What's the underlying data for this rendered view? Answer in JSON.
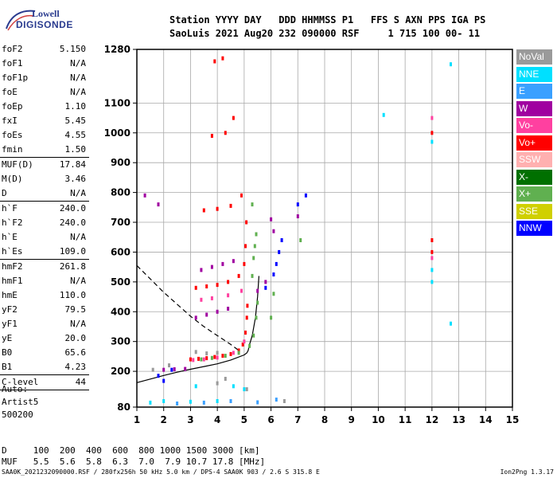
{
  "logo": {
    "line1": "Lowell",
    "line2": "DIGISONDE"
  },
  "header": {
    "line1": "Station YYYY DAY   DDD HHMMSS P1   FFS S AXN PPS IGA PS",
    "line2": "SaoLuis 2021 Aug20 232 090000 RSF     1 715 100 00- 11"
  },
  "params": {
    "group1": [
      {
        "k": "foF2",
        "v": "5.150"
      },
      {
        "k": "foF1",
        "v": "N/A"
      },
      {
        "k": "foF1p",
        "v": "N/A"
      },
      {
        "k": "foE",
        "v": "N/A"
      },
      {
        "k": "foEp",
        "v": "1.10"
      },
      {
        "k": "fxI",
        "v": "5.45"
      },
      {
        "k": "foEs",
        "v": "4.55"
      },
      {
        "k": "fmin",
        "v": "1.50"
      }
    ],
    "group2": [
      {
        "k": "MUF(D)",
        "v": "17.84"
      },
      {
        "k": "M(D)",
        "v": "3.46"
      },
      {
        "k": "D",
        "v": "N/A"
      }
    ],
    "group3": [
      {
        "k": "h`F",
        "v": "240.0"
      },
      {
        "k": "h`F2",
        "v": "240.0"
      },
      {
        "k": "h`E",
        "v": "N/A"
      },
      {
        "k": "h`Es",
        "v": "109.0"
      }
    ],
    "group4": [
      {
        "k": "hmF2",
        "v": "261.8"
      },
      {
        "k": "hmF1",
        "v": "N/A"
      },
      {
        "k": "hmE",
        "v": "110.0"
      },
      {
        "k": "yF2",
        "v": "79.5"
      },
      {
        "k": "yF1",
        "v": "N/A"
      },
      {
        "k": "yE",
        "v": "20.0"
      },
      {
        "k": "B0",
        "v": "65.6"
      },
      {
        "k": "B1",
        "v": "4.23"
      }
    ],
    "group5": [
      {
        "k": "C-level",
        "v": "44"
      }
    ]
  },
  "auto": {
    "l1": "Auto:",
    "l2": "Artist5",
    "l3": "500200"
  },
  "legend": [
    {
      "label": "NoVal",
      "color": "#9a9a9a"
    },
    {
      "label": "NNE",
      "color": "#00e0ff"
    },
    {
      "label": "E",
      "color": "#3aa0ff"
    },
    {
      "label": "W",
      "color": "#a000a0"
    },
    {
      "label": "Vo-",
      "color": "#ff40a0"
    },
    {
      "label": "Vo+",
      "color": "#ff0000"
    },
    {
      "label": "SSW",
      "color": "#ffb0b0"
    },
    {
      "label": "X-",
      "color": "#007000"
    },
    {
      "label": "X+",
      "color": "#60b050"
    },
    {
      "label": "SSE",
      "color": "#d0d000"
    },
    {
      "label": "NNW",
      "color": "#0000ff"
    }
  ],
  "muf_table": {
    "d_row": "D     100  200  400  600  800 1000 1500 3000 [km]",
    "muf_row": "MUF   5.5  5.6  5.8  6.3  7.0  7.9 10.7 17.8 [MHz]"
  },
  "footer": {
    "left": "SAA0K_2021232090000.RSF / 280fx256h 50 kHz 5.0 km / DPS-4 SAA0K 903 / 2.6 S 315.8 E",
    "right": "Ion2Png 1.3.17"
  },
  "chart_data": {
    "type": "scatter",
    "title": "",
    "xlabel": "",
    "ylabel": "",
    "xlim": [
      1,
      15
    ],
    "ylim": [
      80,
      1280
    ],
    "x_ticks": [
      "1",
      "2",
      "3",
      "4",
      "5",
      "6",
      "7",
      "8",
      "9",
      "10",
      "11",
      "12",
      "13",
      "14",
      "15"
    ],
    "y_ticks": [
      "80",
      "200",
      "300",
      "400",
      "500",
      "600",
      "700",
      "800",
      "900",
      "1000",
      "1100",
      "1280"
    ],
    "grid": true,
    "series": [
      {
        "name": "Vo+",
        "color": "#ff0000",
        "points": [
          [
            3.0,
            240
          ],
          [
            3.3,
            242
          ],
          [
            3.6,
            244
          ],
          [
            3.9,
            248
          ],
          [
            4.2,
            252
          ],
          [
            4.5,
            258
          ],
          [
            4.8,
            270
          ],
          [
            4.95,
            290
          ],
          [
            5.05,
            330
          ],
          [
            5.1,
            380
          ],
          [
            5.12,
            420
          ],
          [
            3.2,
            480
          ],
          [
            3.6,
            485
          ],
          [
            4.0,
            490
          ],
          [
            4.4,
            500
          ],
          [
            4.8,
            520
          ],
          [
            5.0,
            560
          ],
          [
            5.05,
            620
          ],
          [
            5.08,
            700
          ],
          [
            3.5,
            740
          ],
          [
            4.0,
            745
          ],
          [
            4.5,
            755
          ],
          [
            4.9,
            790
          ],
          [
            3.8,
            990
          ],
          [
            4.3,
            1000
          ],
          [
            4.6,
            1050
          ],
          [
            3.9,
            1240
          ],
          [
            4.2,
            1250
          ],
          [
            12.0,
            1000
          ],
          [
            12.0,
            640
          ],
          [
            12.0,
            600
          ]
        ]
      },
      {
        "name": "Vo-",
        "color": "#ff40a0",
        "points": [
          [
            3.1,
            238
          ],
          [
            3.5,
            240
          ],
          [
            4.0,
            246
          ],
          [
            4.6,
            262
          ],
          [
            5.0,
            300
          ],
          [
            3.4,
            440
          ],
          [
            3.8,
            445
          ],
          [
            4.4,
            455
          ],
          [
            4.9,
            470
          ],
          [
            12.0,
            1050
          ],
          [
            12.0,
            580
          ]
        ]
      },
      {
        "name": "X+",
        "color": "#60b050",
        "points": [
          [
            3.4,
            240
          ],
          [
            3.8,
            245
          ],
          [
            4.3,
            252
          ],
          [
            4.8,
            262
          ],
          [
            5.2,
            285
          ],
          [
            5.35,
            320
          ],
          [
            5.45,
            380
          ],
          [
            5.5,
            430
          ],
          [
            5.3,
            520
          ],
          [
            5.35,
            580
          ],
          [
            5.4,
            620
          ],
          [
            5.45,
            660
          ],
          [
            5.3,
            760
          ],
          [
            6.0,
            380
          ],
          [
            6.1,
            460
          ],
          [
            7.1,
            640
          ]
        ]
      },
      {
        "name": "W",
        "color": "#a000a0",
        "points": [
          [
            2.0,
            205
          ],
          [
            2.4,
            207
          ],
          [
            2.8,
            208
          ],
          [
            3.2,
            380
          ],
          [
            3.6,
            390
          ],
          [
            4.0,
            400
          ],
          [
            4.4,
            410
          ],
          [
            3.4,
            540
          ],
          [
            3.8,
            550
          ],
          [
            4.2,
            560
          ],
          [
            4.6,
            570
          ],
          [
            5.5,
            470
          ],
          [
            5.8,
            500
          ],
          [
            6.1,
            670
          ],
          [
            6.0,
            710
          ],
          [
            7.0,
            720
          ],
          [
            1.3,
            790
          ],
          [
            1.8,
            760
          ]
        ]
      },
      {
        "name": "NNW",
        "color": "#0000ff",
        "points": [
          [
            2.0,
            168
          ],
          [
            2.3,
            205
          ],
          [
            1.8,
            185
          ],
          [
            5.8,
            480
          ],
          [
            6.1,
            525
          ],
          [
            6.2,
            560
          ],
          [
            6.3,
            600
          ],
          [
            6.4,
            640
          ],
          [
            7.3,
            790
          ],
          [
            7.0,
            760
          ]
        ]
      },
      {
        "name": "NNE",
        "color": "#00e0ff",
        "points": [
          [
            1.5,
            95
          ],
          [
            2.0,
            100
          ],
          [
            3.0,
            98
          ],
          [
            4.0,
            100
          ],
          [
            4.6,
            150
          ],
          [
            5.0,
            140
          ],
          [
            3.2,
            150
          ],
          [
            12.0,
            500
          ],
          [
            12.0,
            540
          ],
          [
            12.0,
            970
          ],
          [
            12.7,
            1230
          ],
          [
            12.7,
            360
          ],
          [
            10.2,
            1060
          ]
        ]
      },
      {
        "name": "E",
        "color": "#3aa0ff",
        "points": [
          [
            2.5,
            92
          ],
          [
            3.5,
            95
          ],
          [
            4.5,
            100
          ],
          [
            5.5,
            96
          ],
          [
            6.2,
            105
          ]
        ]
      },
      {
        "name": "NoVal",
        "color": "#9a9a9a",
        "points": [
          [
            1.6,
            205
          ],
          [
            2.2,
            220
          ],
          [
            3.2,
            265
          ],
          [
            3.6,
            260
          ],
          [
            4.0,
            262
          ],
          [
            6.5,
            100
          ],
          [
            5.1,
            140
          ],
          [
            4.3,
            175
          ],
          [
            4.0,
            160
          ]
        ]
      }
    ],
    "curves": [
      {
        "name": "profile",
        "style": "solid",
        "points": [
          [
            1,
            162
          ],
          [
            1.5,
            174
          ],
          [
            2,
            186
          ],
          [
            2.5,
            197
          ],
          [
            3,
            207
          ],
          [
            3.5,
            216
          ],
          [
            4,
            225
          ],
          [
            4.5,
            238
          ],
          [
            5,
            255
          ],
          [
            5.1,
            261.8
          ],
          [
            5.15,
            270
          ],
          [
            5.2,
            290
          ],
          [
            5.3,
            320
          ],
          [
            5.42,
            380
          ],
          [
            5.5,
            450
          ],
          [
            5.55,
            520
          ]
        ]
      },
      {
        "name": "trace",
        "style": "dashed",
        "points": [
          [
            1,
            555
          ],
          [
            1.5,
            510
          ],
          [
            2,
            465
          ],
          [
            2.5,
            425
          ],
          [
            3,
            385
          ],
          [
            3.5,
            350
          ],
          [
            4,
            320
          ],
          [
            4.5,
            290
          ],
          [
            4.8,
            270
          ]
        ]
      }
    ]
  }
}
